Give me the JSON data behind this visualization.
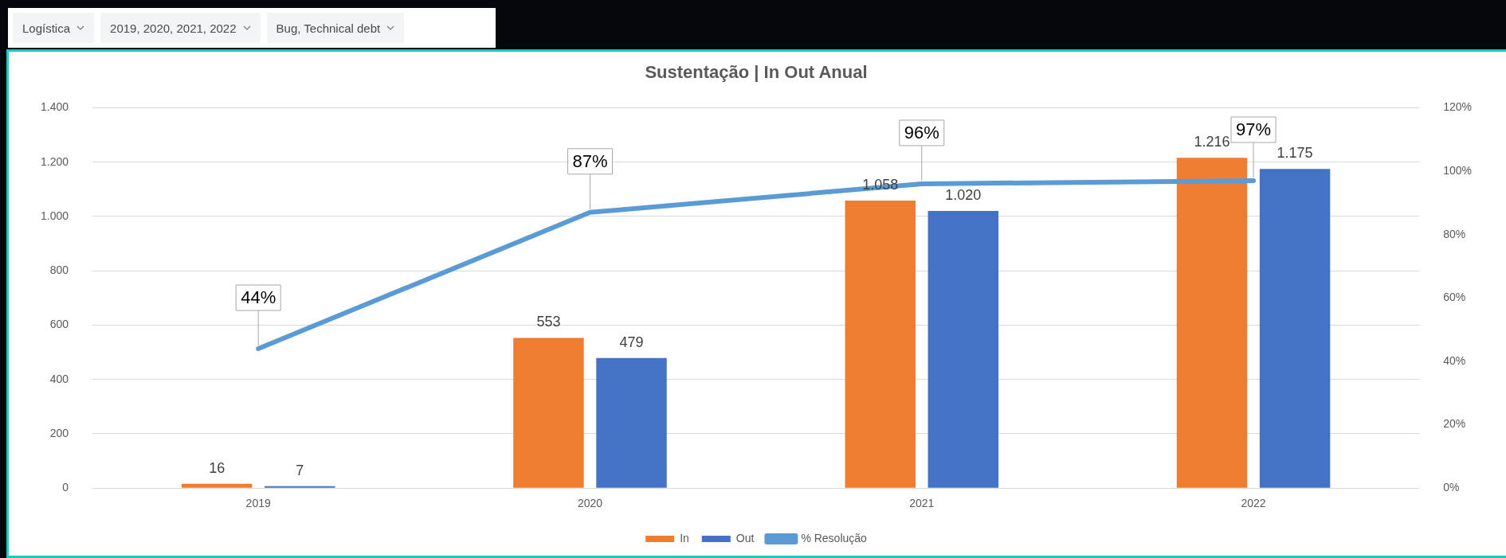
{
  "chart_data": {
    "type": "bar",
    "title": "Sustentação | In Out Anual",
    "annotations": [
      "Logística",
      "2019, 2020, 2021, 2022",
      "Bug, Technical debt"
    ],
    "categories": [
      "2019",
      "2020",
      "2021",
      "2022"
    ],
    "series": [
      {
        "name": "In",
        "color": "#ed7d31",
        "values": [
          16,
          553,
          1058,
          1216
        ],
        "value_labels": [
          "16",
          "553",
          "1.058",
          "1.216"
        ]
      },
      {
        "name": "Out",
        "color": "#4472c4",
        "values": [
          7,
          479,
          1020,
          1175
        ],
        "value_labels": [
          "7",
          "479",
          "1.020",
          "1.175"
        ]
      },
      {
        "name": "% Resolução",
        "type": "line",
        "axis": "y2",
        "color": "#5b9bd5",
        "values": [
          44,
          87,
          96,
          97
        ],
        "value_labels": [
          "44%",
          "87%",
          "96%",
          "97%"
        ]
      }
    ],
    "ylim": [
      0,
      1400
    ],
    "yticks": [
      0,
      200,
      400,
      600,
      800,
      {
        "value": 1000,
        "label": "1.000"
      },
      {
        "value": 1200,
        "label": "1.200"
      },
      {
        "value": 1400,
        "label": "1.400"
      }
    ],
    "y2lim": [
      0,
      120
    ],
    "y2ticks": [
      {
        "value": 0,
        "label": "0%"
      },
      {
        "value": 20,
        "label": "20%"
      },
      {
        "value": 40,
        "label": "40%"
      },
      {
        "value": 60,
        "label": "60%"
      },
      {
        "value": 80,
        "label": "80%"
      },
      {
        "value": 100,
        "label": "100%"
      },
      {
        "value": 120,
        "label": "120%"
      }
    ],
    "grid": "y",
    "legend": "bottom",
    "marker": "none"
  }
}
